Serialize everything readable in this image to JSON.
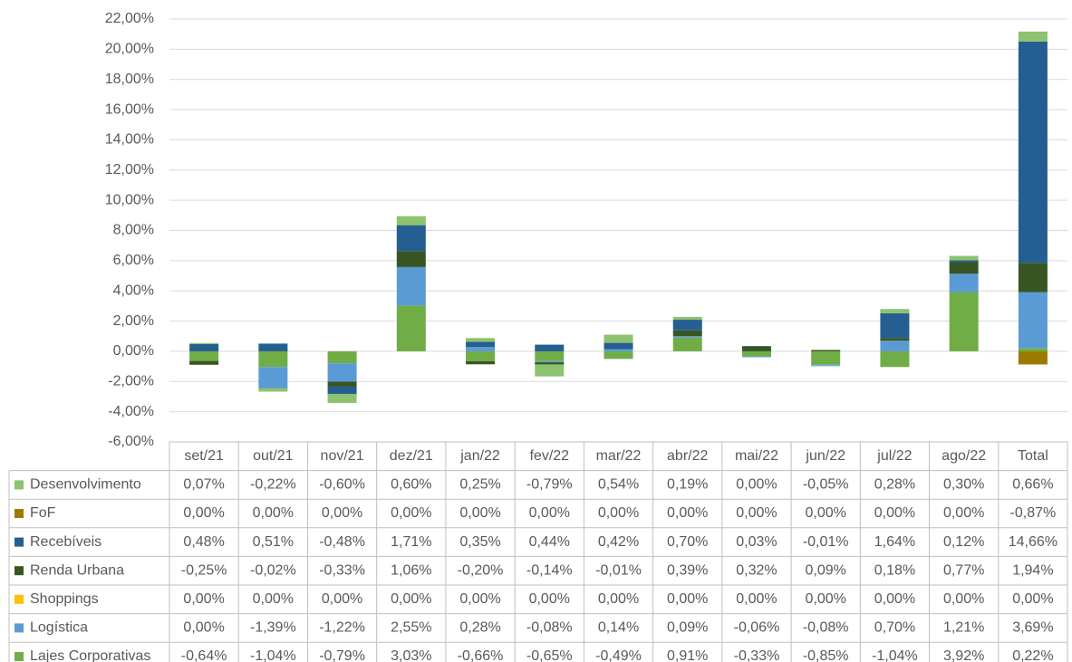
{
  "chart_data": {
    "type": "bar",
    "stacked": true,
    "categories": [
      "set/21",
      "out/21",
      "nov/21",
      "dez/21",
      "jan/22",
      "fev/22",
      "mar/22",
      "abr/22",
      "mai/22",
      "jun/22",
      "jul/22",
      "ago/22",
      "Total"
    ],
    "ylim": [
      -6,
      22
    ],
    "yticks": [
      {
        "value": -6,
        "label": "-6,00%"
      },
      {
        "value": -4,
        "label": "-4,00%"
      },
      {
        "value": -2,
        "label": "-2,00%"
      },
      {
        "value": 0,
        "label": "0,00%"
      },
      {
        "value": 2,
        "label": "2,00%"
      },
      {
        "value": 4,
        "label": "4,00%"
      },
      {
        "value": 6,
        "label": "6,00%"
      },
      {
        "value": 8,
        "label": "8,00%"
      },
      {
        "value": 10,
        "label": "10,00%"
      },
      {
        "value": 12,
        "label": "12,00%"
      },
      {
        "value": 14,
        "label": "14,00%"
      },
      {
        "value": 16,
        "label": "16,00%"
      },
      {
        "value": 18,
        "label": "18,00%"
      },
      {
        "value": 20,
        "label": "20,00%"
      },
      {
        "value": 22,
        "label": "22,00%"
      }
    ],
    "grid": true,
    "series": [
      {
        "name": "Desenvolvimento",
        "color": "#8dc26f",
        "values": [
          0.07,
          -0.22,
          -0.6,
          0.6,
          0.25,
          -0.79,
          0.54,
          0.19,
          0,
          -0.05,
          0.28,
          0.3,
          0.66
        ],
        "value_labels": [
          "0,07%",
          "-0,22%",
          "-0,60%",
          "0,60%",
          "0,25%",
          "-0,79%",
          "0,54%",
          "0,19%",
          "0,00%",
          "-0,05%",
          "0,28%",
          "0,30%",
          "0,66%"
        ]
      },
      {
        "name": "FoF",
        "color": "#9c7a00",
        "values": [
          0,
          0,
          0,
          0,
          0,
          0,
          0,
          0,
          0,
          0,
          0,
          0,
          -0.87
        ],
        "value_labels": [
          "0,00%",
          "0,00%",
          "0,00%",
          "0,00%",
          "0,00%",
          "0,00%",
          "0,00%",
          "0,00%",
          "0,00%",
          "0,00%",
          "0,00%",
          "0,00%",
          "-0,87%"
        ]
      },
      {
        "name": "Recebíveis",
        "color": "#255e91",
        "values": [
          0.48,
          0.51,
          -0.48,
          1.71,
          0.35,
          0.44,
          0.42,
          0.7,
          0.03,
          -0.01,
          1.64,
          0.12,
          14.66
        ],
        "value_labels": [
          "0,48%",
          "0,51%",
          "-0,48%",
          "1,71%",
          "0,35%",
          "0,44%",
          "0,42%",
          "0,70%",
          "0,03%",
          "-0,01%",
          "1,64%",
          "0,12%",
          "14,66%"
        ]
      },
      {
        "name": "Renda Urbana",
        "color": "#375623",
        "values": [
          -0.25,
          -0.02,
          -0.33,
          1.06,
          -0.2,
          -0.14,
          -0.01,
          0.39,
          0.32,
          0.09,
          0.18,
          0.77,
          1.94
        ],
        "value_labels": [
          "-0,25%",
          "-0,02%",
          "-0,33%",
          "1,06%",
          "-0,20%",
          "-0,14%",
          "-0,01%",
          "0,39%",
          "0,32%",
          "0,09%",
          "0,18%",
          "0,77%",
          "1,94%"
        ]
      },
      {
        "name": "Shoppings",
        "color": "#ffc000",
        "values": [
          0,
          0,
          0,
          0,
          0,
          0,
          0,
          0,
          0,
          0,
          0,
          0,
          0
        ],
        "value_labels": [
          "0,00%",
          "0,00%",
          "0,00%",
          "0,00%",
          "0,00%",
          "0,00%",
          "0,00%",
          "0,00%",
          "0,00%",
          "0,00%",
          "0,00%",
          "0,00%",
          "0,00%"
        ]
      },
      {
        "name": "Logística",
        "color": "#5b9bd5",
        "values": [
          0,
          -1.39,
          -1.22,
          2.55,
          0.28,
          -0.08,
          0.14,
          0.09,
          -0.06,
          -0.08,
          0.7,
          1.21,
          3.69
        ],
        "value_labels": [
          "0,00%",
          "-1,39%",
          "-1,22%",
          "2,55%",
          "0,28%",
          "-0,08%",
          "0,14%",
          "0,09%",
          "-0,06%",
          "-0,08%",
          "0,70%",
          "1,21%",
          "3,69%"
        ]
      },
      {
        "name": "Lajes Corporativas",
        "color": "#70ad47",
        "values": [
          -0.64,
          -1.04,
          -0.79,
          3.03,
          -0.66,
          -0.65,
          -0.49,
          0.91,
          -0.33,
          -0.85,
          -1.04,
          3.92,
          0.22
        ],
        "value_labels": [
          "-0,64%",
          "-1,04%",
          "-0,79%",
          "3,03%",
          "-0,66%",
          "-0,65%",
          "-0,49%",
          "0,91%",
          "-0,33%",
          "-0,85%",
          "-1,04%",
          "3,92%",
          "0,22%"
        ]
      }
    ]
  }
}
